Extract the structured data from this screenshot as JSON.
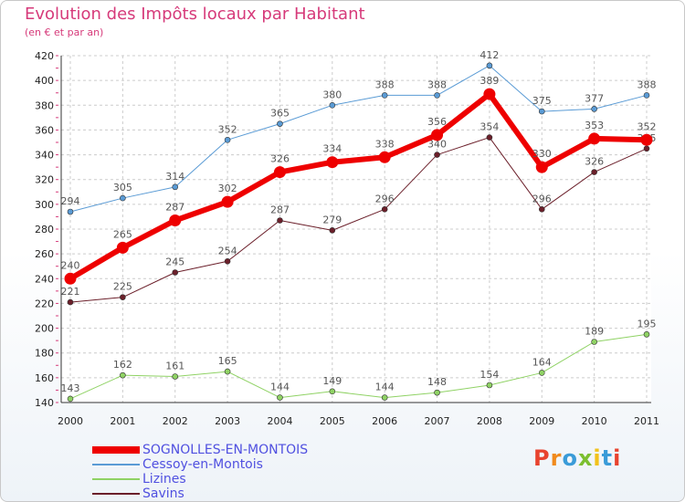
{
  "header": {
    "title": "Evolution des Impôts locaux par Habitant",
    "subtitle": "(en € et par an)"
  },
  "logo": {
    "text": "Proxiti",
    "colors": [
      "#e8432e",
      "#f08a1c",
      "#3a9bd8",
      "#7cbf2f",
      "#f2c21b",
      "#3a9bd8",
      "#e8432e"
    ]
  },
  "chart_data": {
    "type": "line",
    "title": "Evolution des Impôts locaux par Habitant",
    "subtitle": "(en € et par an)",
    "categories": [
      "2000",
      "2001",
      "2002",
      "2003",
      "2004",
      "2005",
      "2006",
      "2007",
      "2008",
      "2009",
      "2010",
      "2011"
    ],
    "ylim": [
      140,
      420
    ],
    "yticks": [
      140,
      160,
      180,
      200,
      220,
      240,
      260,
      280,
      300,
      320,
      340,
      360,
      380,
      400,
      420
    ],
    "grid": true,
    "legend_position": "bottom-left",
    "series": [
      {
        "name": "Cessoy-en-Montois",
        "color": "#5a9bd5",
        "width": 1,
        "values": [
          294,
          305,
          314,
          352,
          365,
          380,
          388,
          388,
          412,
          375,
          377,
          388
        ]
      },
      {
        "name": "Lizines",
        "color": "#8fd264",
        "width": 1,
        "values": [
          143,
          162,
          161,
          165,
          144,
          149,
          144,
          148,
          154,
          164,
          189,
          195
        ]
      },
      {
        "name": "Savins",
        "color": "#6b1f2a",
        "width": 1,
        "values": [
          221,
          225,
          245,
          254,
          287,
          279,
          296,
          340,
          354,
          296,
          326,
          345
        ]
      },
      {
        "name": "SOGNOLLES-EN-MONTOIS",
        "color": "#ee0000",
        "width": 6,
        "values": [
          240,
          265,
          287,
          302,
          326,
          334,
          338,
          356,
          389,
          330,
          353,
          352
        ]
      }
    ],
    "legend_order": [
      "SOGNOLLES-EN-MONTOIS",
      "Cessoy-en-Montois",
      "Lizines",
      "Savins"
    ]
  }
}
